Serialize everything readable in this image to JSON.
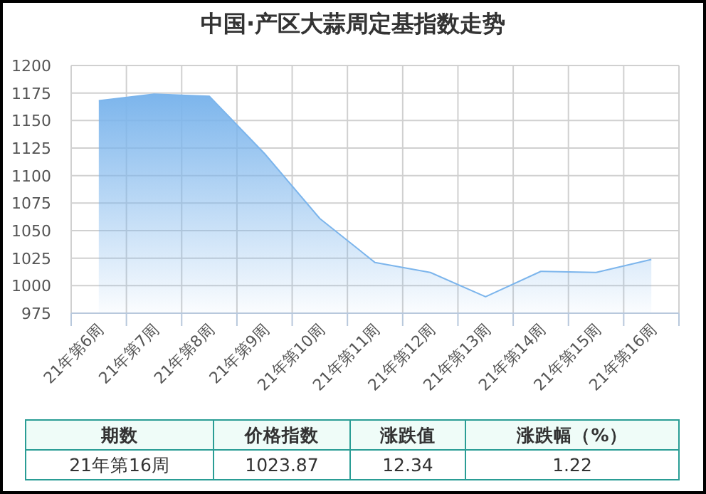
{
  "chart_data": {
    "type": "area",
    "title": "中国·产区大蒜周定基指数走势",
    "categories": [
      "21年第6周",
      "21年第7周",
      "21年第8周",
      "21年第9周",
      "21年第10周",
      "21年第11周",
      "21年第12周",
      "21年第13周",
      "21年第14周",
      "21年第15周",
      "21年第16周"
    ],
    "series": [
      {
        "color": "#7cb5ec",
        "values": [
          1168,
          1174,
          1172,
          1120,
          1061,
          1021,
          1012,
          990,
          1013,
          1012,
          1023.87
        ]
      }
    ],
    "ylim": [
      975,
      1200
    ],
    "yticks": [
      975,
      1000,
      1025,
      1050,
      1075,
      1100,
      1125,
      1150,
      1175,
      1200
    ],
    "grid": true,
    "annotations": [
      "期数",
      "价格指数",
      "涨跌值",
      "涨跌幅（%）",
      "21年第16周",
      "1023.87",
      "12.34",
      "1.22"
    ]
  }
}
